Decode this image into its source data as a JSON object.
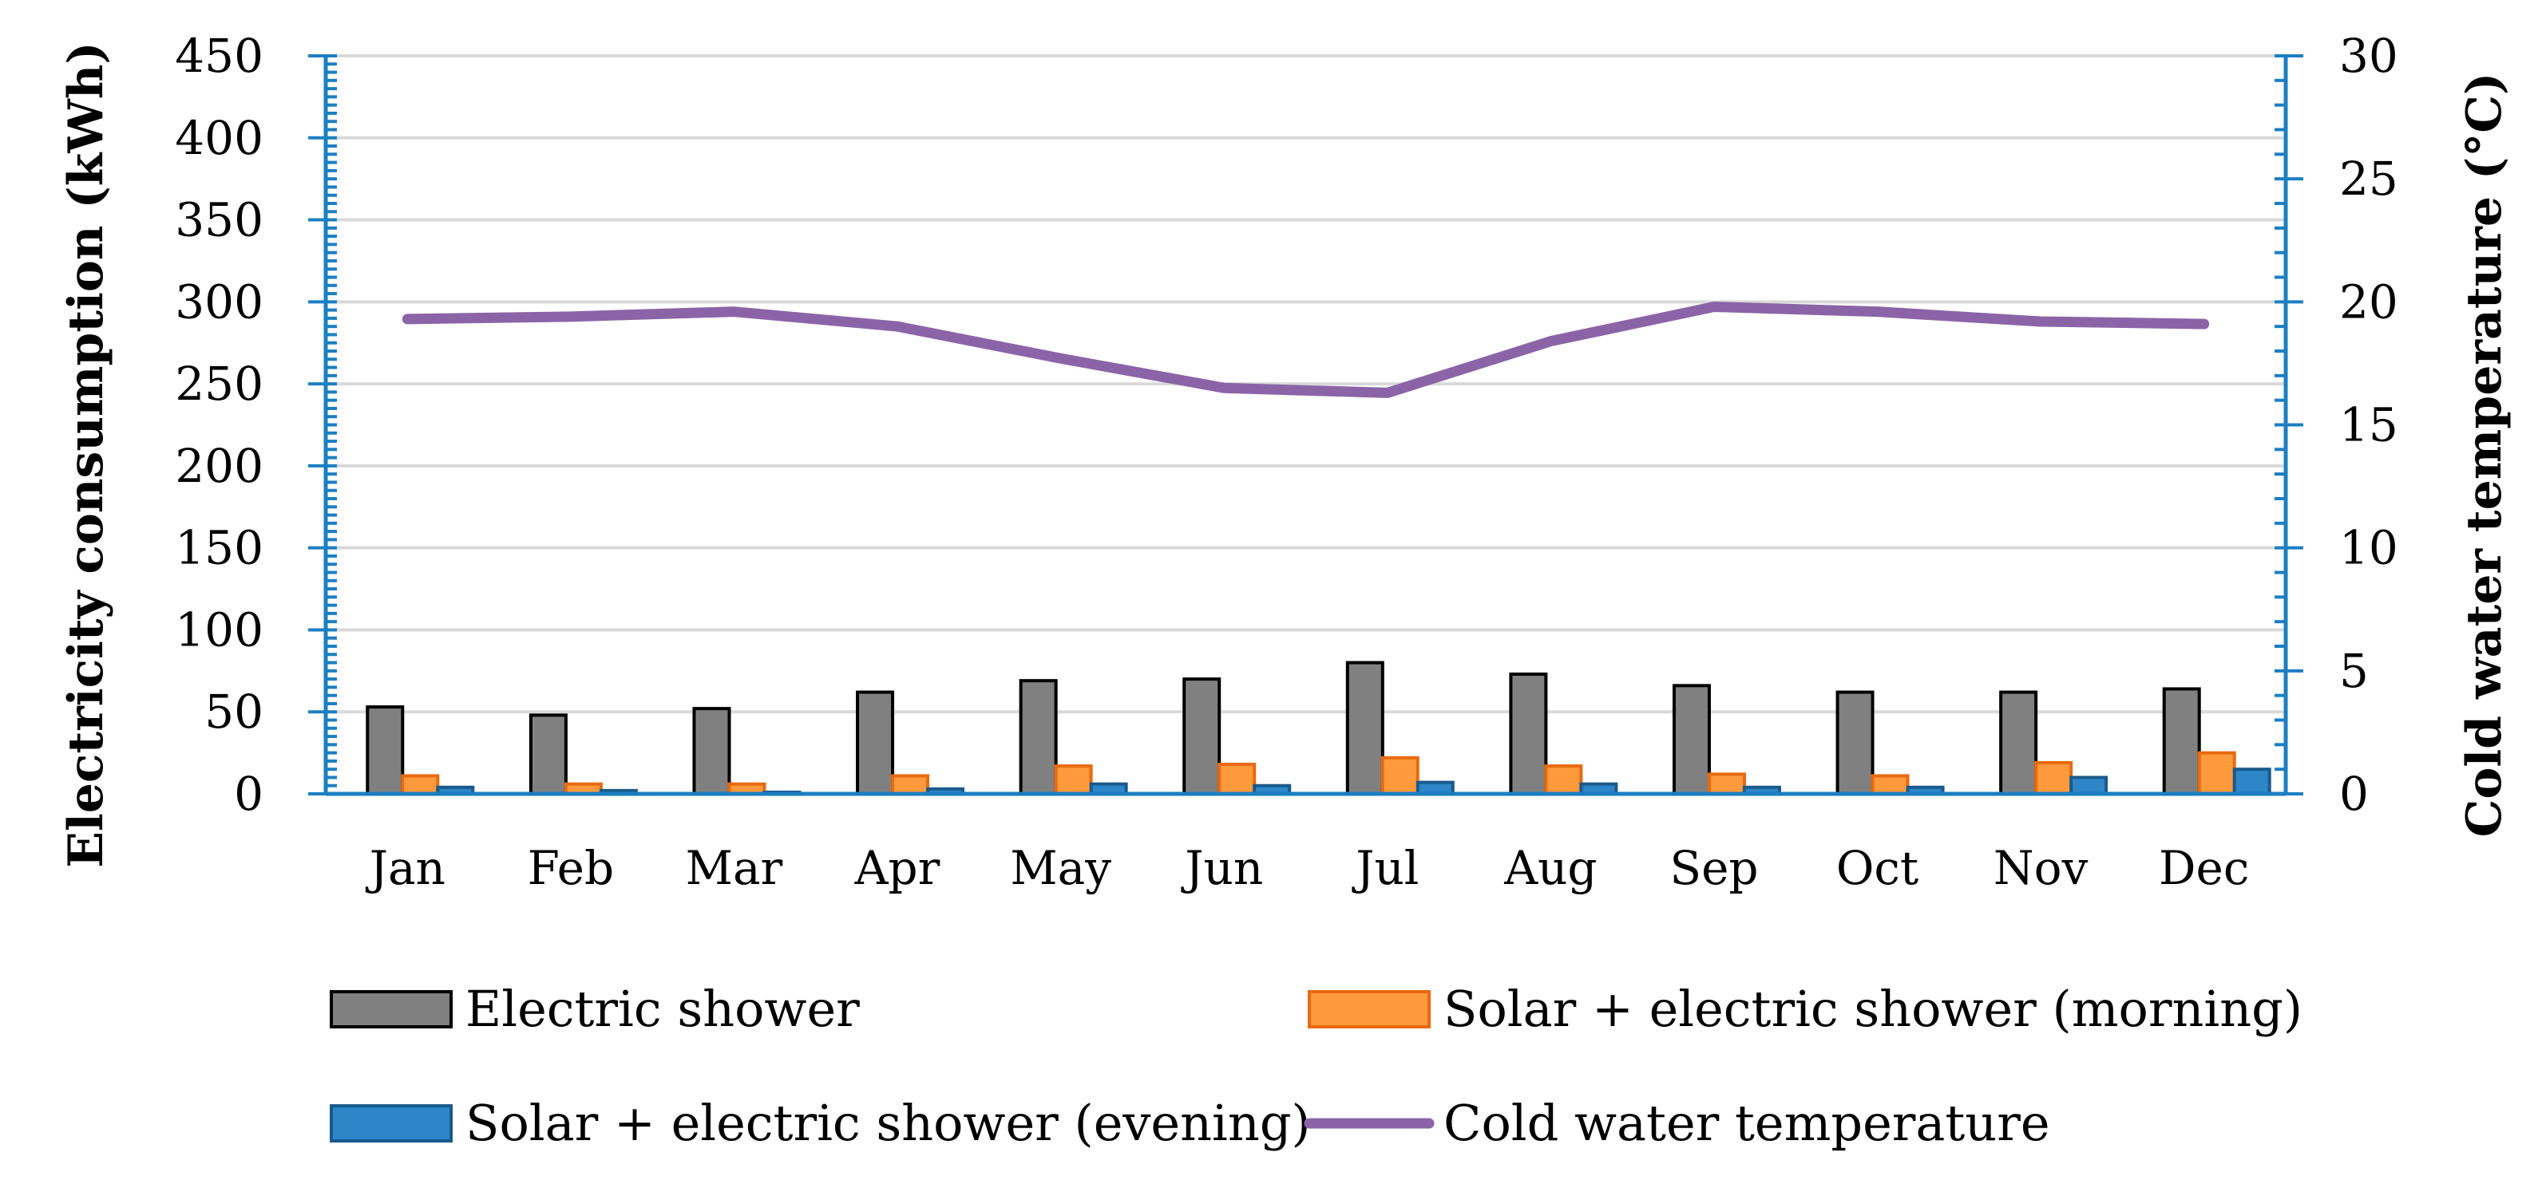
{
  "chart_data": {
    "type": "bar",
    "categories": [
      "Jan",
      "Feb",
      "Mar",
      "Apr",
      "May",
      "Jun",
      "Jul",
      "Aug",
      "Sep",
      "Oct",
      "Nov",
      "Dec"
    ],
    "series": [
      {
        "name": "Electric shower",
        "type": "bar",
        "axis": "left",
        "color": "#808080",
        "stroke": "#000000",
        "values": [
          53,
          48,
          52,
          62,
          69,
          70,
          80,
          73,
          66,
          62,
          62,
          64
        ]
      },
      {
        "name": "Solar + electric shower (morning)",
        "type": "bar",
        "axis": "left",
        "color": "#FF9A3C",
        "stroke": "#E86A10",
        "values": [
          11,
          6,
          6,
          11,
          17,
          18,
          22,
          17,
          12,
          11,
          19,
          25
        ]
      },
      {
        "name": "Solar + electric shower (evening)",
        "type": "bar",
        "axis": "left",
        "color": "#2E86C8",
        "stroke": "#1A5A8C",
        "values": [
          4,
          2,
          1,
          3,
          6,
          5,
          7,
          6,
          4,
          4,
          10,
          15
        ]
      },
      {
        "name": "Cold water temperature",
        "type": "line",
        "axis": "right",
        "color": "#8B64A8",
        "values": [
          19.3,
          19.4,
          19.6,
          19.0,
          17.7,
          16.5,
          16.3,
          18.4,
          19.8,
          19.6,
          19.2,
          19.1
        ]
      }
    ],
    "ylabel": "Electricity consumption (kWh)",
    "ylim": [
      0,
      450
    ],
    "yticks": [
      "0",
      "50",
      "100",
      "150",
      "200",
      "250",
      "300",
      "350",
      "400",
      "450"
    ],
    "y2label": "Cold water temperature (°C)",
    "y2lim": [
      0,
      30
    ],
    "y2ticks": [
      "0",
      "5",
      "10",
      "15",
      "20",
      "25",
      "30"
    ],
    "grid": true,
    "legend_position": "bottom",
    "axis_color": "#1B7FC2"
  }
}
